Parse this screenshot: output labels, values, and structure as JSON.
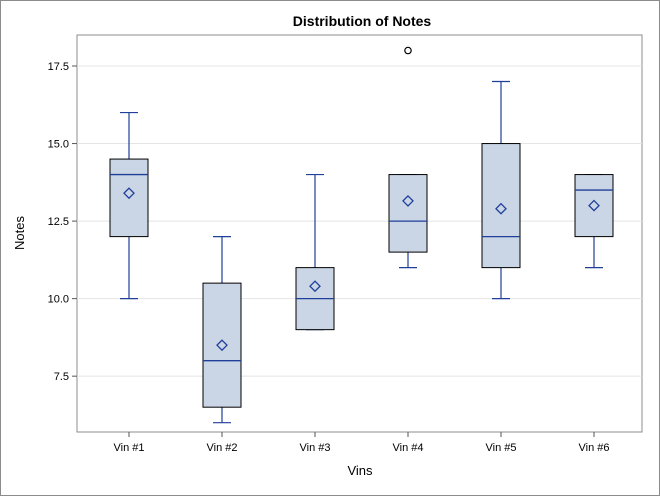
{
  "chart_data": {
    "type": "box",
    "title": "Distribution of Notes",
    "xlabel": "Vins",
    "ylabel": "Notes",
    "ylim": [
      5.7,
      18.5
    ],
    "yticks": [
      7.5,
      10.0,
      12.5,
      15.0,
      17.5
    ],
    "ytick_labels": [
      "7.5",
      "10.0",
      "12.5",
      "15.0",
      "17.5"
    ],
    "grid": true,
    "categories": [
      "Vin #1",
      "Vin #2",
      "Vin #3",
      "Vin #4",
      "Vin #5",
      "Vin #6"
    ],
    "boxes": [
      {
        "category": "Vin #1",
        "min": 10,
        "q1": 12,
        "median": 14,
        "q3": 14.5,
        "max": 16,
        "mean": 13.4,
        "outliers": []
      },
      {
        "category": "Vin #2",
        "min": 6,
        "q1": 6.5,
        "median": 8,
        "q3": 10.5,
        "max": 12,
        "mean": 8.5,
        "outliers": []
      },
      {
        "category": "Vin #3",
        "min": 9,
        "q1": 9,
        "median": 10,
        "q3": 11,
        "max": 14,
        "mean": 10.4,
        "outliers": []
      },
      {
        "category": "Vin #4",
        "min": 11,
        "q1": 11.5,
        "median": 12.5,
        "q3": 14,
        "max": 14,
        "mean": 13.15,
        "outliers": [
          18
        ]
      },
      {
        "category": "Vin #5",
        "min": 10,
        "q1": 11,
        "median": 12,
        "q3": 15,
        "max": 17,
        "mean": 12.9,
        "outliers": []
      },
      {
        "category": "Vin #6",
        "min": 11,
        "q1": 12,
        "median": 13.5,
        "q3": 14,
        "max": 14,
        "mean": 13,
        "outliers": []
      }
    ],
    "colors": {
      "box_fill": "#cad5e5",
      "line": "#1f3f9a",
      "box_border": "#000000"
    }
  }
}
